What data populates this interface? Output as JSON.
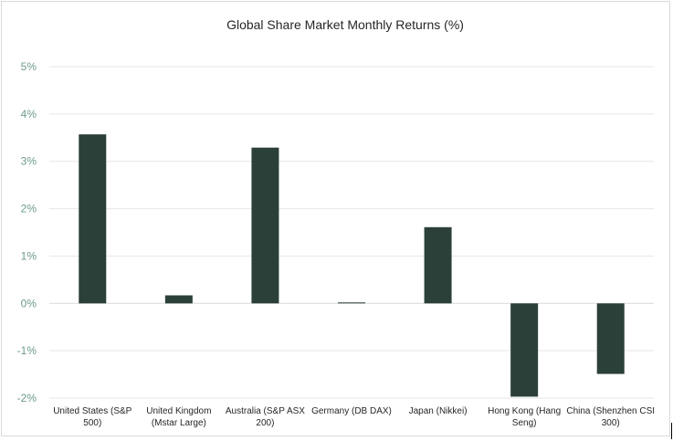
{
  "chart_data": {
    "type": "bar",
    "title": "Global Share Market Monthly Returns (%)",
    "xlabel": "",
    "ylabel": "",
    "categories": [
      [
        "United States (S&P",
        "500)"
      ],
      [
        "United Kingdom",
        "(Mstar Large)"
      ],
      [
        "Australia (S&P ASX",
        "200)"
      ],
      [
        "Germany (DB DAX)"
      ],
      [
        "Japan (Nikkei)"
      ],
      [
        "Hong Kong (Hang",
        "Seng)"
      ],
      [
        "China (Shenzhen CSI",
        "300)"
      ]
    ],
    "values": [
      3.57,
      0.17,
      3.29,
      0.02,
      1.61,
      -1.97,
      -1.49
    ],
    "ylim": [
      -2,
      5
    ],
    "yticks": [
      5,
      4,
      3,
      2,
      1,
      0,
      -1,
      -2
    ],
    "ytick_labels": [
      "5%",
      "4%",
      "3%",
      "2%",
      "1%",
      "0%",
      "-1%",
      "-2%"
    ],
    "grid": true,
    "legend": "none",
    "colors": {
      "bar": "#2b4039",
      "grid": "#e6e6e6",
      "axis_zero": "#d9d9d9",
      "ytick_text": "#6d9b89",
      "text": "#262626"
    }
  }
}
